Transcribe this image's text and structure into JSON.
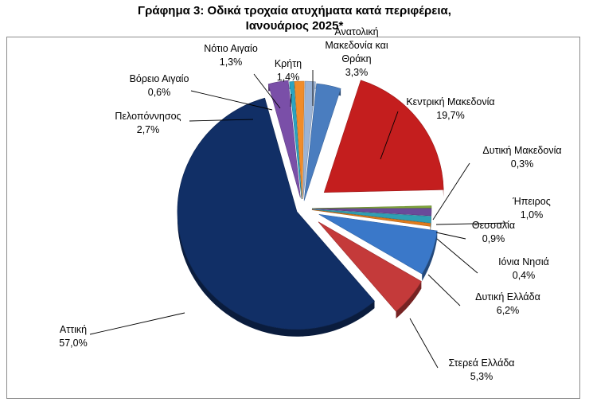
{
  "chart_data": {
    "type": "pie",
    "title_line1": "Γράφημα 3: Οδικά τροχαία ατυχήματα κατά περιφέρεια,",
    "title_line2": "Ιανουάριος 2025*",
    "exploded": true,
    "slices": [
      {
        "name": "Ανατολική Μακεδονία και Θράκη",
        "name_lines": [
          "Ανατολική",
          "Μακεδονία και",
          "Θράκη"
        ],
        "value": 3.3,
        "value_label": "3,3%",
        "color": "#4a7dbf"
      },
      {
        "name": "Κεντρική Μακεδονία",
        "name_lines": [
          "Κεντρική Μακεδονία"
        ],
        "value": 19.7,
        "value_label": "19,7%",
        "color": "#c41e1e"
      },
      {
        "name": "Δυτική Μακεδονία",
        "name_lines": [
          "Δυτική Μακεδονία"
        ],
        "value": 0.3,
        "value_label": "0,3%",
        "color": "#7fa63a"
      },
      {
        "name": "Ήπειρος",
        "name_lines": [
          "Ήπειρος"
        ],
        "value": 1.0,
        "value_label": "1,0%",
        "color": "#6a4a9a"
      },
      {
        "name": "Θεσσαλία",
        "name_lines": [
          "Θεσσαλία"
        ],
        "value": 0.9,
        "value_label": "0,9%",
        "color": "#2f9fb4"
      },
      {
        "name": "Ιόνια Νησιά",
        "name_lines": [
          "Ιόνια Νησιά"
        ],
        "value": 0.4,
        "value_label": "0,4%",
        "color": "#e07b1c"
      },
      {
        "name": "Δυτική Ελλάδα",
        "name_lines": [
          "Δυτική Ελλάδα"
        ],
        "value": 6.2,
        "value_label": "6,2%",
        "color": "#3a78c9"
      },
      {
        "name": "Στερεά Ελλάδα",
        "name_lines": [
          "Στερεά Ελλάδα"
        ],
        "value": 5.3,
        "value_label": "5,3%",
        "color": "#c43a3a"
      },
      {
        "name": "Αττική",
        "name_lines": [
          "Αττική"
        ],
        "value": 57.0,
        "value_label": "57,0%",
        "color": "#112f66"
      },
      {
        "name": "Πελοπόννησος",
        "name_lines": [
          "Πελοπόννησος"
        ],
        "value": 2.7,
        "value_label": "2,7%",
        "color": "#7a4fa8"
      },
      {
        "name": "Βόρειο Αιγαίο",
        "name_lines": [
          "Βόρειο Αιγαίο"
        ],
        "value": 0.6,
        "value_label": "0,6%",
        "color": "#2ba3c0"
      },
      {
        "name": "Νότιο Αιγαίο",
        "name_lines": [
          "Νότιο Αιγαίο"
        ],
        "value": 1.3,
        "value_label": "1,3%",
        "color": "#f08c2a"
      },
      {
        "name": "Κρήτη",
        "name_lines": [
          "Κρήτη"
        ],
        "value": 1.4,
        "value_label": "1,4%",
        "color": "#9ab3d6"
      }
    ]
  }
}
